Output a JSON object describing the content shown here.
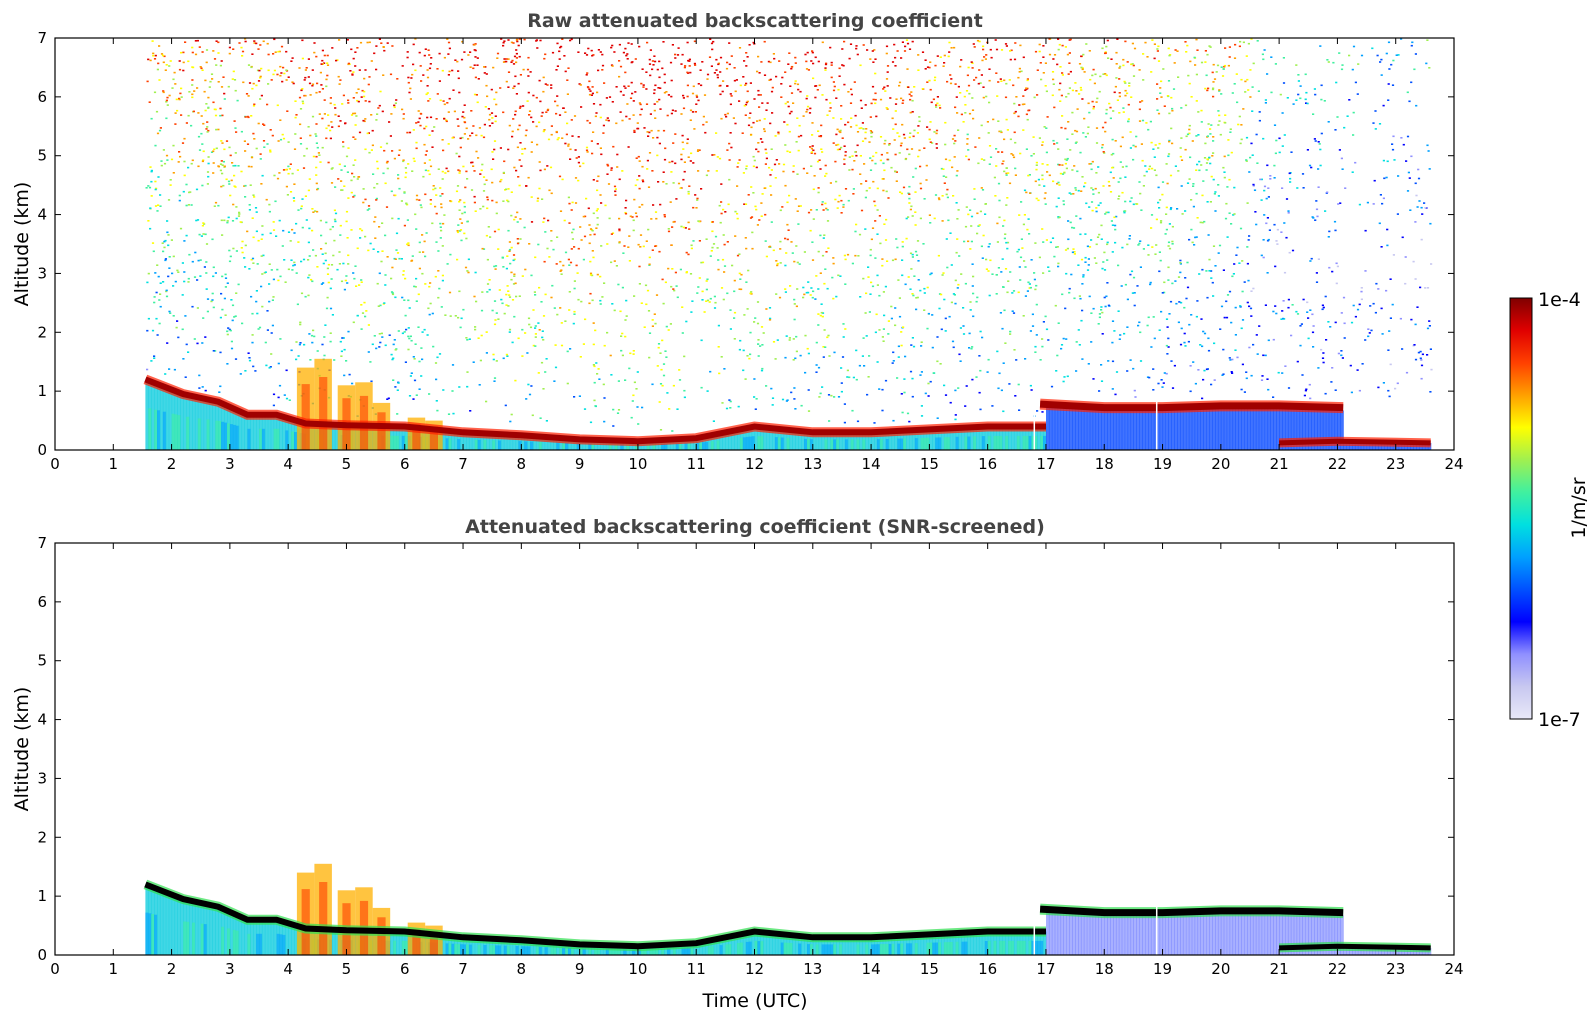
{
  "chart_data": [
    {
      "type": "heatmap",
      "title": "Raw attenuated backscattering coefficient",
      "xlabel": "",
      "ylabel": "Altitude (km)",
      "xlim": [
        0,
        24
      ],
      "ylim": [
        0,
        7
      ],
      "xticks": [
        "0",
        "1",
        "2",
        "3",
        "4",
        "5",
        "6",
        "7",
        "8",
        "9",
        "10",
        "11",
        "12",
        "13",
        "14",
        "15",
        "16",
        "17",
        "18",
        "19",
        "20",
        "21",
        "22",
        "23",
        "24"
      ],
      "yticks": [
        "0",
        "1",
        "2",
        "3",
        "4",
        "5",
        "6",
        "7"
      ],
      "data_time_range": [
        1.55,
        23.6
      ],
      "features": {
        "cloud_base_layer": [
          [
            1.55,
            1.2
          ],
          [
            2.2,
            0.95
          ],
          [
            2.8,
            0.82
          ],
          [
            3.3,
            0.6
          ],
          [
            3.8,
            0.6
          ],
          [
            4.3,
            0.45
          ],
          [
            5,
            0.42
          ],
          [
            6,
            0.4
          ],
          [
            7,
            0.3
          ],
          [
            8,
            0.25
          ],
          [
            9,
            0.18
          ],
          [
            10,
            0.15
          ],
          [
            11,
            0.2
          ],
          [
            12,
            0.4
          ],
          [
            13,
            0.3
          ],
          [
            14,
            0.3
          ],
          [
            15,
            0.35
          ],
          [
            16,
            0.4
          ],
          [
            17,
            0.4
          ]
        ],
        "upper_layer": [
          [
            16.9,
            0.78
          ],
          [
            18,
            0.72
          ],
          [
            19,
            0.72
          ],
          [
            20,
            0.75
          ],
          [
            21,
            0.75
          ],
          [
            22.1,
            0.72
          ]
        ],
        "lower_layer_late": [
          [
            21,
            0.12
          ],
          [
            22,
            0.15
          ],
          [
            23.6,
            0.12
          ]
        ],
        "noise_max_intensity_hour": 10
      }
    },
    {
      "type": "heatmap",
      "title": "Attenuated backscattering coefficient (SNR-screened)",
      "xlabel": "Time (UTC)",
      "ylabel": "Altitude (km)",
      "xlim": [
        0,
        24
      ],
      "ylim": [
        0,
        7
      ],
      "xticks": [
        "0",
        "1",
        "2",
        "3",
        "4",
        "5",
        "6",
        "7",
        "8",
        "9",
        "10",
        "11",
        "12",
        "13",
        "14",
        "15",
        "16",
        "17",
        "18",
        "19",
        "20",
        "21",
        "22",
        "23",
        "24"
      ],
      "yticks": [
        "0",
        "1",
        "2",
        "3",
        "4",
        "5",
        "6",
        "7"
      ],
      "data_time_range": [
        1.55,
        23.6
      ],
      "features": {
        "cloud_base_layer": [
          [
            1.55,
            1.2
          ],
          [
            2.2,
            0.95
          ],
          [
            2.8,
            0.82
          ],
          [
            3.3,
            0.6
          ],
          [
            3.8,
            0.6
          ],
          [
            4.3,
            0.45
          ],
          [
            5,
            0.42
          ],
          [
            6,
            0.4
          ],
          [
            7,
            0.3
          ],
          [
            8,
            0.25
          ],
          [
            9,
            0.18
          ],
          [
            10,
            0.15
          ],
          [
            11,
            0.2
          ],
          [
            12,
            0.4
          ],
          [
            13,
            0.3
          ],
          [
            14,
            0.3
          ],
          [
            15,
            0.35
          ],
          [
            16,
            0.4
          ],
          [
            17,
            0.4
          ]
        ],
        "upper_layer": [
          [
            16.9,
            0.78
          ],
          [
            18,
            0.72
          ],
          [
            19,
            0.72
          ],
          [
            20,
            0.75
          ],
          [
            21,
            0.75
          ],
          [
            22.1,
            0.72
          ]
        ],
        "lower_layer_late": [
          [
            21,
            0.12
          ],
          [
            22,
            0.15
          ],
          [
            23.6,
            0.12
          ]
        ]
      }
    }
  ],
  "colorbar": {
    "max_label": "1e-4",
    "min_label": "1e-7",
    "unit_label": "1/m/sr",
    "colormap": [
      "#e8e8f8",
      "#c8c8f0",
      "#9090ff",
      "#0000ff",
      "#0050ff",
      "#00a0ff",
      "#00e0e0",
      "#40f0a0",
      "#a0f050",
      "#ffff00",
      "#ffa000",
      "#ff4000",
      "#e00000",
      "#800000"
    ]
  }
}
